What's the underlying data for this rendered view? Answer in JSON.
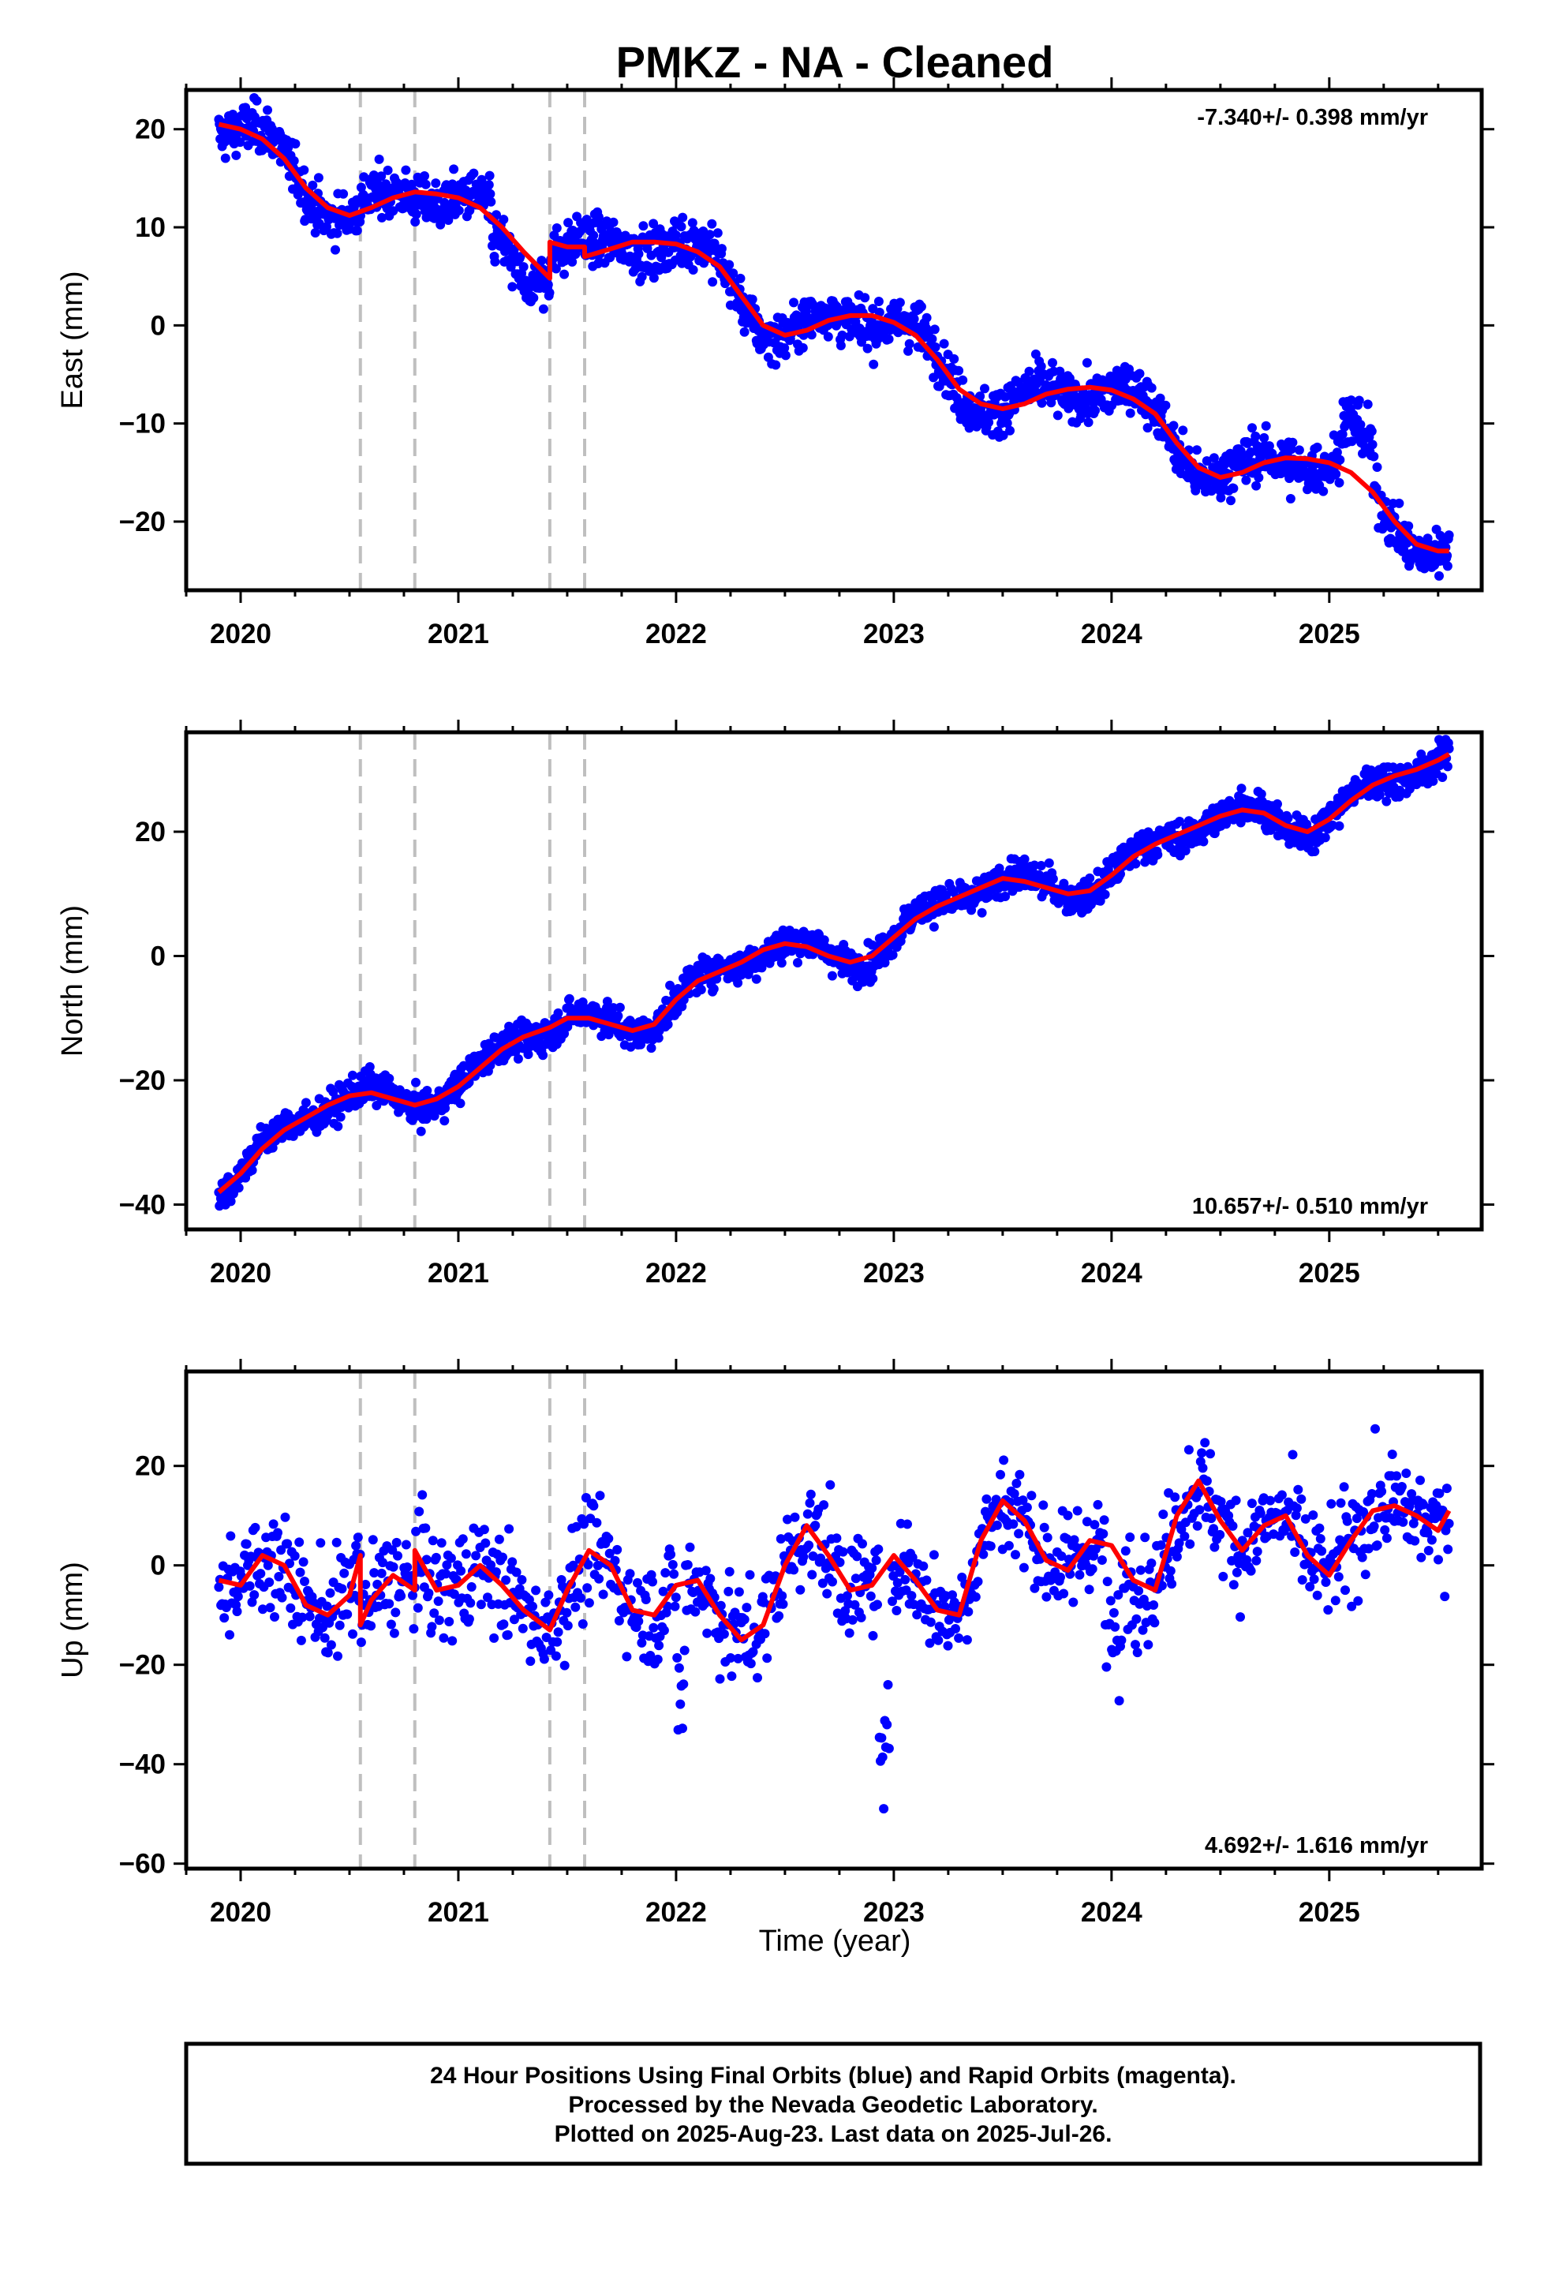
{
  "title": "PMKZ  - NA - Cleaned",
  "xlabel": "Time (year)",
  "xtick_labels": [
    "2020",
    "2021",
    "2022",
    "2023",
    "2024",
    "2025"
  ],
  "footer": {
    "line1": "24 Hour Positions Using Final Orbits (blue) and Rapid Orbits (magenta).",
    "line2": "Processed by the Nevada Geodetic Laboratory.",
    "line3": "Plotted on 2025-Aug-23. Last data on 2025-Jul-26."
  },
  "colors": {
    "data": "#0000ff",
    "model": "#ff0000",
    "breaks": "#bfbfbf",
    "frame": "#000000"
  },
  "chart_data": [
    {
      "type": "scatter",
      "component": "east",
      "ylabel": "East (mm)",
      "rate_label": "-7.340+/- 0.398 mm/yr",
      "rate_position": "top-right",
      "xlim": [
        2019.75,
        2025.7
      ],
      "ylim": [
        -27,
        24
      ],
      "yticks": [
        -20,
        -10,
        0,
        10,
        20
      ],
      "ytick_labels": [
        "−20",
        "−10",
        "0",
        "10",
        "20"
      ],
      "breaks": [
        2020.55,
        2020.8,
        2021.42,
        2021.58
      ],
      "model": {
        "x": [
          2019.9,
          2020.0,
          2020.1,
          2020.2,
          2020.3,
          2020.4,
          2020.5,
          2020.6,
          2020.7,
          2020.8,
          2020.9,
          2021.0,
          2021.1,
          2021.2,
          2021.3,
          2021.42,
          2021.42,
          2021.5,
          2021.58,
          2021.58,
          2021.7,
          2021.8,
          2021.9,
          2022.0,
          2022.1,
          2022.2,
          2022.3,
          2022.4,
          2022.5,
          2022.6,
          2022.7,
          2022.8,
          2022.9,
          2023.0,
          2023.1,
          2023.2,
          2023.3,
          2023.4,
          2023.5,
          2023.6,
          2023.7,
          2023.8,
          2023.9,
          2024.0,
          2024.1,
          2024.2,
          2024.3,
          2024.4,
          2024.5,
          2024.6,
          2024.7,
          2024.8,
          2024.9,
          2025.0,
          2025.1,
          2025.2,
          2025.3,
          2025.4,
          2025.5,
          2025.55
        ],
        "y": [
          20.5,
          20.0,
          19.0,
          17.0,
          14.0,
          12.0,
          11.2,
          12.0,
          13.0,
          13.6,
          13.4,
          13.0,
          12.0,
          10.0,
          7.5,
          4.8,
          8.5,
          8.0,
          8.0,
          7.0,
          7.8,
          8.5,
          8.5,
          8.3,
          7.5,
          6.0,
          3.0,
          0.0,
          -1.0,
          -0.5,
          0.5,
          1.0,
          1.0,
          0.3,
          -1.0,
          -3.5,
          -6.5,
          -8.0,
          -8.5,
          -8.0,
          -7.0,
          -6.5,
          -6.3,
          -6.6,
          -7.5,
          -9.0,
          -12.0,
          -14.5,
          -15.5,
          -15.0,
          -14.0,
          -13.5,
          -13.6,
          -14.0,
          -15.0,
          -17.0,
          -20.0,
          -22.3,
          -23.0,
          -23.0
        ]
      },
      "seasonal_amp": 1.2,
      "excursions": [
        {
          "start": 2021.15,
          "end": 2021.35,
          "offset": -3.0
        },
        {
          "start": 2025.05,
          "end": 2025.2,
          "offset": 5.0
        }
      ],
      "noise": 1.3,
      "n_points": 1850
    },
    {
      "type": "scatter",
      "component": "north",
      "ylabel": "North (mm)",
      "rate_label": "10.657+/- 0.510 mm/yr",
      "rate_position": "bottom-right",
      "xlim": [
        2019.75,
        2025.7
      ],
      "ylim": [
        -44,
        36
      ],
      "yticks": [
        -40,
        -20,
        0,
        20
      ],
      "ytick_labels": [
        "−40",
        "−20",
        "0",
        "20"
      ],
      "breaks": [
        2020.55,
        2020.8,
        2021.42,
        2021.58
      ],
      "model": {
        "x": [
          2019.9,
          2020.0,
          2020.1,
          2020.2,
          2020.3,
          2020.4,
          2020.5,
          2020.6,
          2020.7,
          2020.8,
          2020.9,
          2021.0,
          2021.1,
          2021.2,
          2021.3,
          2021.42,
          2021.5,
          2021.6,
          2021.7,
          2021.8,
          2021.9,
          2022.0,
          2022.1,
          2022.2,
          2022.3,
          2022.4,
          2022.5,
          2022.6,
          2022.7,
          2022.8,
          2022.9,
          2023.0,
          2023.1,
          2023.2,
          2023.3,
          2023.4,
          2023.5,
          2023.6,
          2023.7,
          2023.8,
          2023.9,
          2024.0,
          2024.1,
          2024.2,
          2024.3,
          2024.4,
          2024.5,
          2024.6,
          2024.7,
          2024.8,
          2024.9,
          2025.0,
          2025.1,
          2025.2,
          2025.3,
          2025.4,
          2025.5,
          2025.55
        ],
        "y": [
          -38,
          -35,
          -31,
          -28,
          -26,
          -24,
          -22.5,
          -22,
          -23,
          -24,
          -23,
          -21,
          -18,
          -15,
          -13,
          -11.5,
          -10,
          -10,
          -11,
          -12,
          -11,
          -7,
          -4,
          -2.5,
          -1,
          1,
          2,
          1.5,
          0,
          -1,
          0,
          3,
          6,
          8,
          9.5,
          11,
          12.5,
          12,
          11,
          10,
          10.5,
          13,
          16,
          18,
          19.5,
          21,
          22.5,
          23.5,
          23,
          21,
          20,
          22,
          25,
          27.5,
          29,
          30,
          31.5,
          32.5
        ]
      },
      "seasonal_amp": 1.0,
      "excursions": [],
      "noise": 1.4,
      "n_points": 1850
    },
    {
      "type": "scatter",
      "component": "up",
      "ylabel": "Up (mm)",
      "rate_label": "4.692+/- 1.616 mm/yr",
      "rate_position": "bottom-right",
      "xlim": [
        2019.75,
        2025.7
      ],
      "ylim": [
        -61,
        39
      ],
      "yticks": [
        -60,
        -40,
        -20,
        0,
        20
      ],
      "ytick_labels": [
        "−60",
        "−40",
        "−20",
        "0",
        "20"
      ],
      "breaks": [
        2020.55,
        2020.8,
        2021.42,
        2021.58
      ],
      "model": {
        "x": [
          2019.9,
          2020.0,
          2020.1,
          2020.2,
          2020.3,
          2020.4,
          2020.5,
          2020.55,
          2020.55,
          2020.6,
          2020.7,
          2020.8,
          2020.8,
          2020.9,
          2021.0,
          2021.1,
          2021.2,
          2021.3,
          2021.42,
          2021.5,
          2021.6,
          2021.7,
          2021.8,
          2021.9,
          2022.0,
          2022.1,
          2022.2,
          2022.3,
          2022.4,
          2022.5,
          2022.6,
          2022.7,
          2022.8,
          2022.9,
          2023.0,
          2023.1,
          2023.2,
          2023.3,
          2023.4,
          2023.5,
          2023.6,
          2023.7,
          2023.8,
          2023.9,
          2024.0,
          2024.1,
          2024.2,
          2024.3,
          2024.4,
          2024.5,
          2024.6,
          2024.7,
          2024.8,
          2024.9,
          2025.0,
          2025.1,
          2025.2,
          2025.3,
          2025.4,
          2025.5,
          2025.55
        ],
        "y": [
          -3,
          -4,
          2,
          0,
          -8,
          -10,
          -6,
          2,
          -12,
          -7,
          -2,
          -5,
          3,
          -5,
          -4,
          0,
          -4,
          -9,
          -13,
          -5,
          3,
          0,
          -9,
          -10,
          -4,
          -3,
          -10,
          -15,
          -12,
          0,
          8,
          2,
          -5,
          -4,
          2,
          -3,
          -9,
          -10,
          5,
          13,
          9,
          1,
          -1,
          5,
          4,
          -3,
          -5,
          10,
          17,
          9,
          3,
          8,
          10,
          2,
          -2,
          5,
          11,
          12,
          10,
          7,
          11
        ]
      },
      "seasonal_amp": 0,
      "excursions": [
        {
          "start": 2022.0,
          "end": 2022.04,
          "offset": -28
        },
        {
          "start": 2022.93,
          "end": 2022.98,
          "offset": -45
        },
        {
          "start": 2023.97,
          "end": 2024.05,
          "offset": -22
        }
      ],
      "noise": 5.5,
      "n_points": 1150
    }
  ]
}
